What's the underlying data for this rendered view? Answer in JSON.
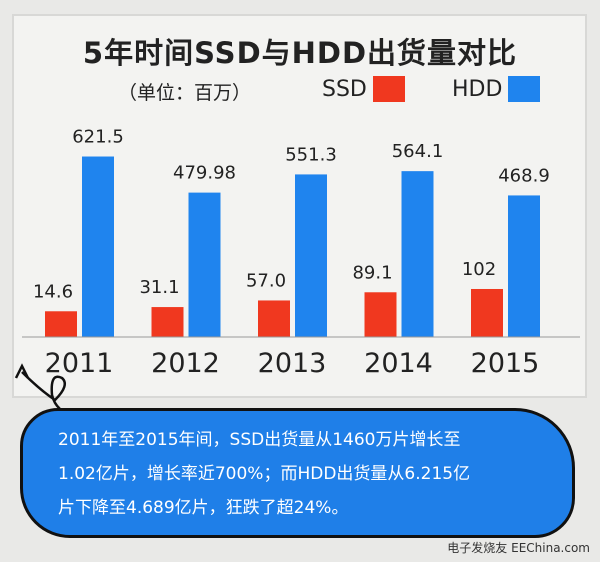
{
  "chart_data": {
    "type": "bar",
    "title": "5年时间SSD与HDD出货量对比",
    "subtitle": "（单位：百万）",
    "categories": [
      "2011",
      "2012",
      "2013",
      "2014",
      "2015"
    ],
    "series": [
      {
        "name": "SSD",
        "color": "#f0381f",
        "values": [
          14.6,
          31.1,
          57.0,
          89.1,
          102
        ],
        "labels": [
          "14.6",
          "31.1",
          "57.0",
          "89.1",
          "102"
        ]
      },
      {
        "name": "HDD",
        "color": "#1f84ee",
        "values": [
          621.5,
          479.98,
          551.3,
          564.1,
          468.9
        ],
        "labels": [
          "621.5",
          "479.98",
          "551.3",
          "564.1",
          "468.9"
        ]
      }
    ],
    "legend": "top-right",
    "grid": false
  },
  "note": {
    "lines": [
      "2011年至2015年间，SSD出货量从1460万片增长至",
      "1.02亿片，增长率近700%；而HDD出货量从6.215亿",
      "片下降至4.689亿片，狂跌了超24%。"
    ]
  },
  "watermark": "电子发烧友 EEChina.com"
}
